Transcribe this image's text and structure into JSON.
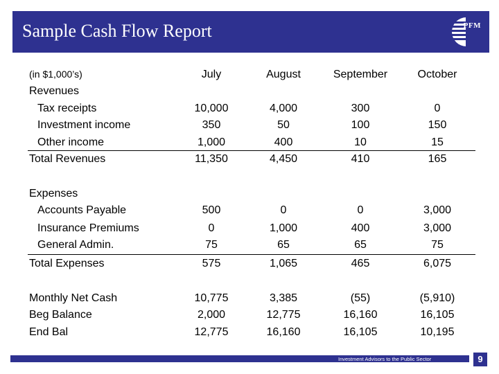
{
  "header": {
    "title": "Sample Cash Flow Report",
    "logo_text": "PFM",
    "logo_icon": "pfm-logo-icon"
  },
  "table": {
    "units": "(in $1,000’s)",
    "months": [
      "July",
      "August",
      "September",
      "October"
    ],
    "revenues_heading": "Revenues",
    "revenues": [
      {
        "label": "Tax receipts",
        "values": [
          "10,000",
          "4,000",
          "300",
          "0"
        ]
      },
      {
        "label": "Investment income",
        "values": [
          "350",
          "50",
          "100",
          "150"
        ]
      },
      {
        "label": "Other income",
        "values": [
          "1,000",
          "400",
          "10",
          "15"
        ]
      }
    ],
    "total_revenues": {
      "label": "Total Revenues",
      "values": [
        "11,350",
        "4,450",
        "410",
        "165"
      ]
    },
    "expenses_heading": "Expenses",
    "expenses": [
      {
        "label": "Accounts Payable",
        "values": [
          "500",
          "0",
          "0",
          "3,000"
        ]
      },
      {
        "label": "Insurance Premiums",
        "values": [
          "0",
          "1,000",
          "400",
          "3,000"
        ]
      },
      {
        "label": "General Admin.",
        "values": [
          "75",
          "65",
          "65",
          "75"
        ]
      }
    ],
    "total_expenses": {
      "label": "Total Expenses",
      "values": [
        "575",
        "1,065",
        "465",
        "6,075"
      ]
    },
    "summary": [
      {
        "label": "Monthly Net Cash",
        "values": [
          "10,775",
          "3,385",
          "(55)",
          "(5,910)"
        ]
      },
      {
        "label": "Beg Balance",
        "values": [
          "2,000",
          "12,775",
          "16,160",
          "16,105"
        ]
      },
      {
        "label": "End Bal",
        "values": [
          "12,775",
          "16,160",
          "16,105",
          "10,195"
        ]
      }
    ]
  },
  "footer": {
    "tagline": "Investment Advisors to the Public Sector",
    "page_number": "9"
  },
  "colors": {
    "brand": "#2e3190",
    "background": "#ffffff",
    "text": "#000000"
  }
}
